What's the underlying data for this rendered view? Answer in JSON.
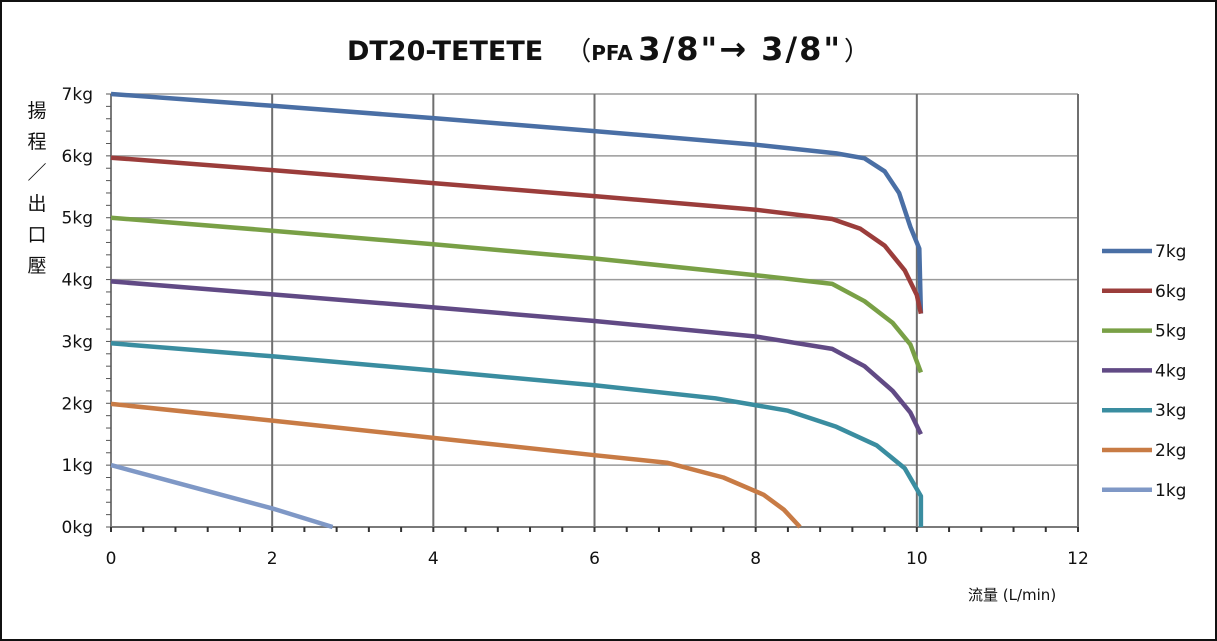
{
  "title": {
    "main": "DT20-TETETE",
    "open_paren": "（",
    "pfa": "PFA",
    "size": "3/8\"→ 3/8\"",
    "close_paren": "）"
  },
  "chart_data": {
    "type": "line",
    "title": "DT20-TETETE （PFA 3/8\"→ 3/8\"）",
    "xlabel": "流量 (L/min)",
    "ylabel": "揚程／出口壓",
    "ylabel_chars": [
      "揚",
      "程",
      "／",
      "出",
      "口",
      "壓"
    ],
    "xlim": [
      0,
      12
    ],
    "ylim": [
      0,
      7
    ],
    "x_ticks": [
      "0",
      "2",
      "4",
      "6",
      "8",
      "10",
      "12"
    ],
    "y_ticks": [
      "0kg",
      "1kg",
      "2kg",
      "3kg",
      "4kg",
      "5kg",
      "6kg",
      "7kg"
    ],
    "grid": true,
    "legend_position": "right",
    "series": [
      {
        "name": "7kg",
        "color": "#4a6fa5",
        "points": [
          [
            0,
            7.0
          ],
          [
            2,
            6.81
          ],
          [
            4,
            6.61
          ],
          [
            6,
            6.4
          ],
          [
            8,
            6.18
          ],
          [
            9,
            6.04
          ],
          [
            9.35,
            5.96
          ],
          [
            9.6,
            5.75
          ],
          [
            9.78,
            5.4
          ],
          [
            9.92,
            4.85
          ],
          [
            10.03,
            4.5
          ],
          [
            10.05,
            3.45
          ]
        ]
      },
      {
        "name": "6kg",
        "color": "#9b3d3b",
        "points": [
          [
            0,
            5.97
          ],
          [
            2,
            5.77
          ],
          [
            4,
            5.56
          ],
          [
            6,
            5.35
          ],
          [
            8,
            5.13
          ],
          [
            8.95,
            4.98
          ],
          [
            9.3,
            4.82
          ],
          [
            9.6,
            4.55
          ],
          [
            9.85,
            4.15
          ],
          [
            10.0,
            3.75
          ],
          [
            10.05,
            3.45
          ]
        ]
      },
      {
        "name": "5kg",
        "color": "#79a046",
        "points": [
          [
            0,
            5.0
          ],
          [
            2,
            4.79
          ],
          [
            4,
            4.57
          ],
          [
            6,
            4.34
          ],
          [
            8,
            4.07
          ],
          [
            8.95,
            3.93
          ],
          [
            9.35,
            3.65
          ],
          [
            9.7,
            3.3
          ],
          [
            9.92,
            2.95
          ],
          [
            10.05,
            2.5
          ]
        ]
      },
      {
        "name": "4kg",
        "color": "#614a85",
        "points": [
          [
            0,
            3.97
          ],
          [
            2,
            3.76
          ],
          [
            4,
            3.55
          ],
          [
            6,
            3.33
          ],
          [
            8,
            3.08
          ],
          [
            8.95,
            2.88
          ],
          [
            9.35,
            2.6
          ],
          [
            9.7,
            2.2
          ],
          [
            9.92,
            1.85
          ],
          [
            10.05,
            1.5
          ]
        ]
      },
      {
        "name": "3kg",
        "color": "#3a8da0",
        "points": [
          [
            0,
            2.97
          ],
          [
            2,
            2.76
          ],
          [
            4,
            2.53
          ],
          [
            6,
            2.29
          ],
          [
            7.5,
            2.08
          ],
          [
            8.4,
            1.88
          ],
          [
            9.0,
            1.62
          ],
          [
            9.5,
            1.32
          ],
          [
            9.85,
            0.95
          ],
          [
            10.05,
            0.5
          ],
          [
            10.05,
            0.0
          ]
        ]
      },
      {
        "name": "2kg",
        "color": "#c87b45",
        "points": [
          [
            0,
            1.99
          ],
          [
            2,
            1.72
          ],
          [
            4,
            1.44
          ],
          [
            6,
            1.16
          ],
          [
            6.9,
            1.04
          ],
          [
            7.6,
            0.8
          ],
          [
            8.1,
            0.52
          ],
          [
            8.35,
            0.28
          ],
          [
            8.55,
            0.0
          ]
        ]
      },
      {
        "name": "1kg",
        "color": "#7f98c6",
        "points": [
          [
            0,
            1.0
          ],
          [
            1,
            0.65
          ],
          [
            2,
            0.3
          ],
          [
            2.75,
            0.0
          ]
        ]
      }
    ]
  }
}
